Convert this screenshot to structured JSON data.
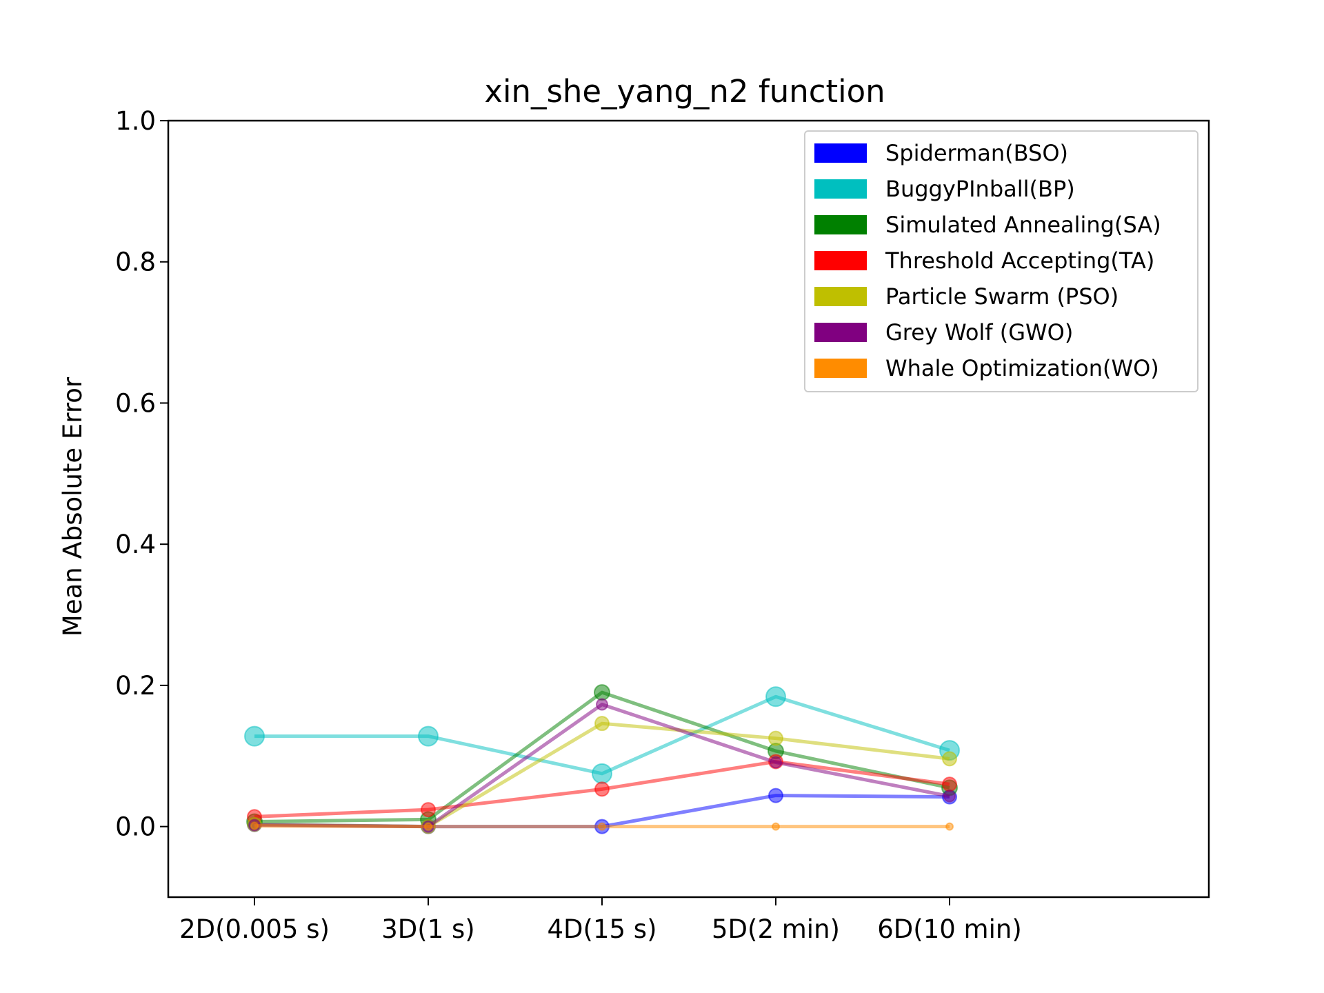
{
  "chart_data": {
    "type": "line",
    "title": "xin_she_yang_n2 function",
    "xlabel": "",
    "ylabel": "Mean Absolute Error",
    "categories": [
      "2D(0.005 s)",
      "3D(1 s)",
      "4D(15 s)",
      "5D(2 min)",
      "6D(10 min)"
    ],
    "ylim": [
      -0.1,
      1.0
    ],
    "yticks": [
      "0.0",
      "0.2",
      "0.4",
      "0.6",
      "0.8",
      "1.0"
    ],
    "grid": false,
    "legend_position": "top-right",
    "series": [
      {
        "name": "Spiderman(BSO)",
        "color": "#0000ff",
        "values": [
          0.003,
          0.0,
          0.0,
          0.044,
          0.042
        ]
      },
      {
        "name": "BuggyPInball(BP)",
        "color": "#00bfbf",
        "values": [
          0.128,
          0.128,
          0.075,
          0.184,
          0.108
        ]
      },
      {
        "name": "Simulated Annealing(SA)",
        "color": "#008000",
        "values": [
          0.007,
          0.01,
          0.19,
          0.107,
          0.055
        ]
      },
      {
        "name": "Threshold Accepting(TA)",
        "color": "#ff0000",
        "values": [
          0.014,
          0.024,
          0.053,
          0.092,
          0.06
        ]
      },
      {
        "name": "Particle Swarm (PSO)",
        "color": "#bfbf00",
        "values": [
          0.003,
          0.0,
          0.146,
          0.125,
          0.096
        ]
      },
      {
        "name": "Grey Wolf (GWO)",
        "color": "#800080",
        "values": [
          0.002,
          0.0,
          0.173,
          0.091,
          0.043
        ]
      },
      {
        "name": "Whale Optimization(WO)",
        "color": "#ff8c00",
        "values": [
          0.001,
          0.0,
          0.0,
          0.0,
          0.0
        ]
      }
    ]
  }
}
